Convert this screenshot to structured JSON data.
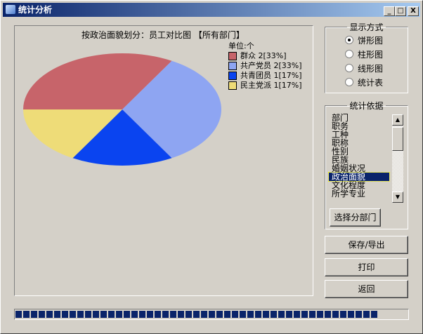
{
  "window": {
    "title": "统计分析",
    "minimize": "_",
    "maximize": "□",
    "close": "X"
  },
  "chart_data": {
    "type": "pie",
    "title": "按政治面貌划分：员工对比图 【所有部门】",
    "unit": "单位:个",
    "slices": [
      {
        "label": "群众",
        "value": 2,
        "percent": "33%",
        "color": "#c7646a"
      },
      {
        "label": "共产党员",
        "value": 2,
        "percent": "33%",
        "color": "#8ea5f2"
      },
      {
        "label": "共青团员",
        "value": 1,
        "percent": "17%",
        "color": "#0a44f0"
      },
      {
        "label": "民主党派",
        "value": 1,
        "percent": "17%",
        "color": "#eedc78"
      }
    ]
  },
  "legend_items": [
    "群众 2[33%]",
    "共产党员 2[33%]",
    "共青团员 1[17%]",
    "民主党派 1[17%]"
  ],
  "display_mode": {
    "title": "显示方式",
    "options": [
      "饼形图",
      "柱形图",
      "线形图",
      "统计表"
    ],
    "selected": 0
  },
  "basis": {
    "title": "统计依据",
    "items": [
      "部门",
      "职务",
      "工种",
      "职称",
      "性别",
      "民族",
      "婚姻状况",
      "政治面貌",
      "文化程度",
      "所学专业"
    ],
    "selected": 7,
    "select_dept": "选择分部门"
  },
  "buttons": {
    "save": "保存/导出",
    "print": "打印",
    "back": "返回"
  },
  "progress": 1.0
}
